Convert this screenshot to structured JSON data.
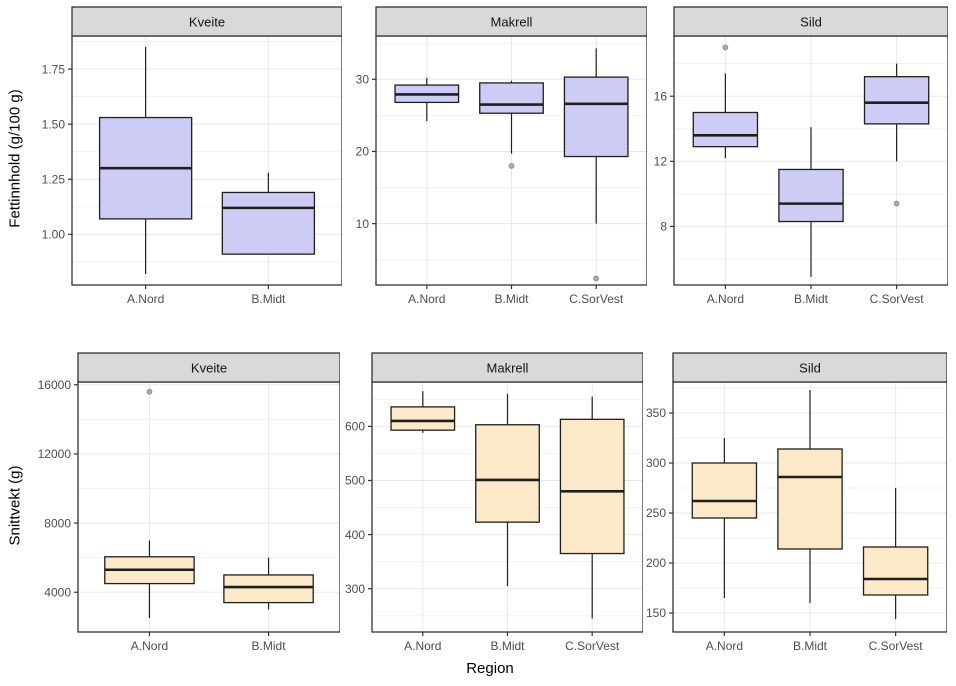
{
  "figure": {
    "background": "#ffffff",
    "x_axis_title": "Region"
  },
  "chart_data": {
    "type": "boxplot-facets",
    "xlabel": "Region",
    "x_categories": [
      "A.Nord",
      "B.Midt",
      "C.SorVest"
    ],
    "style": {
      "panel_bg": "#ffffff",
      "panel_border": "#333333",
      "strip_bg": "#d9d9d9",
      "strip_border": "#333333",
      "strip_text_color": "#141414",
      "grid_major": "#e8e8e8",
      "grid_minor": "#f3f3f3",
      "box_stroke": "#1f1f1f",
      "tick_text_color": "#4d4d4d",
      "tick_mark_color": "#333333",
      "outlier_fill": "#ababab",
      "outlier_stroke": "#909090",
      "fill_row_top": "#ccccf4",
      "fill_row_bottom": "#fce9c8"
    },
    "rows": [
      {
        "ylabel": "Fettinnhold (g/100 g)",
        "box_fill": "#ccccf4",
        "facets": [
          {
            "title": "Kveite",
            "ylim": [
              0.77,
              1.9
            ],
            "yticks": [
              1.0,
              1.25,
              1.5,
              1.75
            ],
            "ytick_labels": [
              "1.00",
              "1.25",
              "1.50",
              "1.75"
            ],
            "boxes": [
              {
                "category": "A.Nord",
                "min": 0.82,
                "q1": 1.07,
                "median": 1.3,
                "q3": 1.53,
                "max": 1.85,
                "outliers": []
              },
              {
                "category": "B.Midt",
                "min": 0.91,
                "q1": 0.91,
                "median": 1.12,
                "q3": 1.19,
                "max": 1.28,
                "outliers": []
              }
            ]
          },
          {
            "title": "Makrell",
            "ylim": [
              1.5,
              36.0
            ],
            "yticks": [
              10,
              20,
              30
            ],
            "ytick_labels": [
              "10",
              "20",
              "30"
            ],
            "boxes": [
              {
                "category": "A.Nord",
                "min": 24.2,
                "q1": 26.8,
                "median": 27.9,
                "q3": 29.2,
                "max": 30.2,
                "outliers": []
              },
              {
                "category": "B.Midt",
                "min": 19.7,
                "q1": 25.3,
                "median": 26.5,
                "q3": 29.5,
                "max": 29.8,
                "outliers": [
                  18
                ]
              },
              {
                "category": "C.SorVest",
                "min": 10.0,
                "q1": 19.3,
                "median": 26.6,
                "q3": 30.3,
                "max": 34.3,
                "outliers": [
                  2.4
                ]
              }
            ]
          },
          {
            "title": "Sild",
            "ylim": [
              4.4,
              19.7
            ],
            "yticks": [
              8,
              12,
              16
            ],
            "ytick_labels": [
              "8",
              "12",
              "16"
            ],
            "boxes": [
              {
                "category": "A.Nord",
                "min": 12.2,
                "q1": 12.9,
                "median": 13.6,
                "q3": 15.0,
                "max": 17.4,
                "outliers": [
                  19.0
                ]
              },
              {
                "category": "B.Midt",
                "min": 4.9,
                "q1": 8.3,
                "median": 9.4,
                "q3": 11.5,
                "max": 14.1,
                "outliers": []
              },
              {
                "category": "C.SorVest",
                "min": 12.0,
                "q1": 14.3,
                "median": 15.6,
                "q3": 17.2,
                "max": 18.0,
                "outliers": [
                  9.4
                ]
              }
            ]
          }
        ]
      },
      {
        "ylabel": "Snittvekt (g)",
        "box_fill": "#fce9c8",
        "facets": [
          {
            "title": "Kveite",
            "ylim": [
              1700,
              16160
            ],
            "yticks": [
              4000,
              8000,
              12000,
              16000
            ],
            "ytick_labels": [
              "4000",
              "8000",
              "12000",
              "16000"
            ],
            "boxes": [
              {
                "category": "A.Nord",
                "min": 2500,
                "q1": 4500,
                "median": 5300,
                "q3": 6050,
                "max": 7000,
                "outliers": [
                  15600
                ]
              },
              {
                "category": "B.Midt",
                "min": 3000,
                "q1": 3400,
                "median": 4300,
                "q3": 5000,
                "max": 6000,
                "outliers": []
              }
            ]
          },
          {
            "title": "Makrell",
            "ylim": [
              220,
              682
            ],
            "yticks": [
              300,
              400,
              500,
              600
            ],
            "ytick_labels": [
              "300",
              "400",
              "500",
              "600"
            ],
            "boxes": [
              {
                "category": "A.Nord",
                "min": 588,
                "q1": 593,
                "median": 610,
                "q3": 636,
                "max": 665,
                "outliers": []
              },
              {
                "category": "B.Midt",
                "min": 305,
                "q1": 423,
                "median": 501,
                "q3": 603,
                "max": 660,
                "outliers": []
              },
              {
                "category": "C.SorVest",
                "min": 245,
                "q1": 365,
                "median": 480,
                "q3": 613,
                "max": 655,
                "outliers": []
              }
            ]
          },
          {
            "title": "Sild",
            "ylim": [
              131,
              381
            ],
            "yticks": [
              150,
              200,
              250,
              300,
              350
            ],
            "ytick_labels": [
              "150",
              "200",
              "250",
              "300",
              "350"
            ],
            "boxes": [
              {
                "category": "A.Nord",
                "min": 165,
                "q1": 245,
                "median": 262,
                "q3": 300,
                "max": 325,
                "outliers": []
              },
              {
                "category": "B.Midt",
                "min": 160,
                "q1": 214,
                "median": 286,
                "q3": 314,
                "max": 373,
                "outliers": []
              },
              {
                "category": "C.SorVest",
                "min": 144,
                "q1": 168,
                "median": 184,
                "q3": 216,
                "max": 275,
                "outliers": []
              }
            ]
          }
        ]
      }
    ]
  }
}
